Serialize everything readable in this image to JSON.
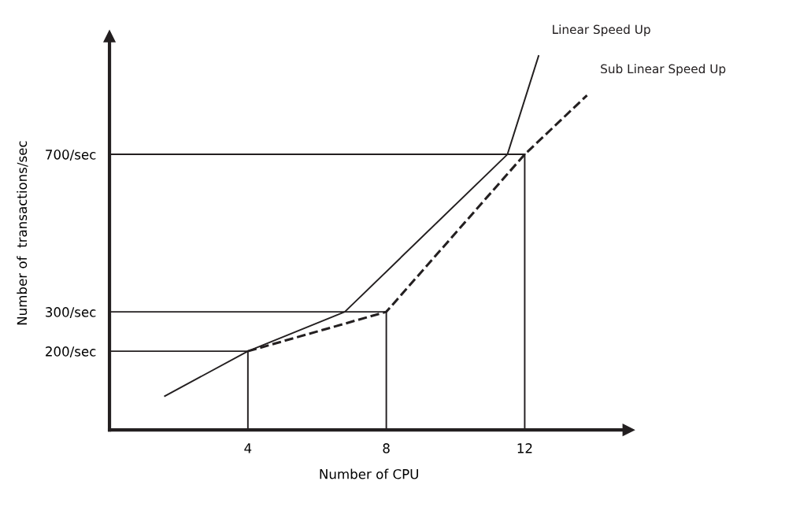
{
  "chart_data": {
    "type": "line",
    "xlabel": "Number of CPU",
    "ylabel": "Number of  transactions/sec",
    "xlim": [
      0,
      15
    ],
    "ylim": [
      0,
      1000
    ],
    "xticks": [
      4,
      8,
      12
    ],
    "yticks": [
      {
        "value": 200,
        "label": "200/sec"
      },
      {
        "value": 300,
        "label": "300/sec"
      },
      {
        "value": 700,
        "label": "700/sec"
      }
    ],
    "grid": false,
    "legend": false,
    "marker": "none",
    "series": [
      {
        "name": "Linear Speed Up",
        "color": "#231f20",
        "line_style": "solid",
        "x": [
          1.6,
          4,
          6.8,
          11.5,
          12.4
        ],
        "values": [
          86,
          200,
          300,
          700,
          950
        ]
      },
      {
        "name": "Sub Linear Speed Up",
        "color": "#231f20",
        "line_style": "dashed",
        "x": [
          4,
          8,
          12,
          13.8
        ],
        "values": [
          200,
          300,
          700,
          850
        ]
      },
      {
        "color": "#231f20",
        "line_style": "solid",
        "x": [
          0,
          4
        ],
        "values": [
          200,
          200
        ]
      },
      {
        "color": "#231f20",
        "line_style": "solid",
        "x": [
          4,
          4
        ],
        "values": [
          0,
          200
        ]
      },
      {
        "color": "#231f20",
        "line_style": "solid",
        "x": [
          0,
          8
        ],
        "values": [
          300,
          300
        ]
      },
      {
        "color": "#231f20",
        "line_style": "solid",
        "x": [
          8,
          8
        ],
        "values": [
          0,
          300
        ]
      },
      {
        "color": "#231f20",
        "line_style": "solid",
        "x": [
          0,
          12
        ],
        "values": [
          700,
          700
        ]
      },
      {
        "color": "#231f20",
        "line_style": "solid",
        "x": [
          12,
          12
        ],
        "values": [
          0,
          700
        ]
      }
    ]
  }
}
